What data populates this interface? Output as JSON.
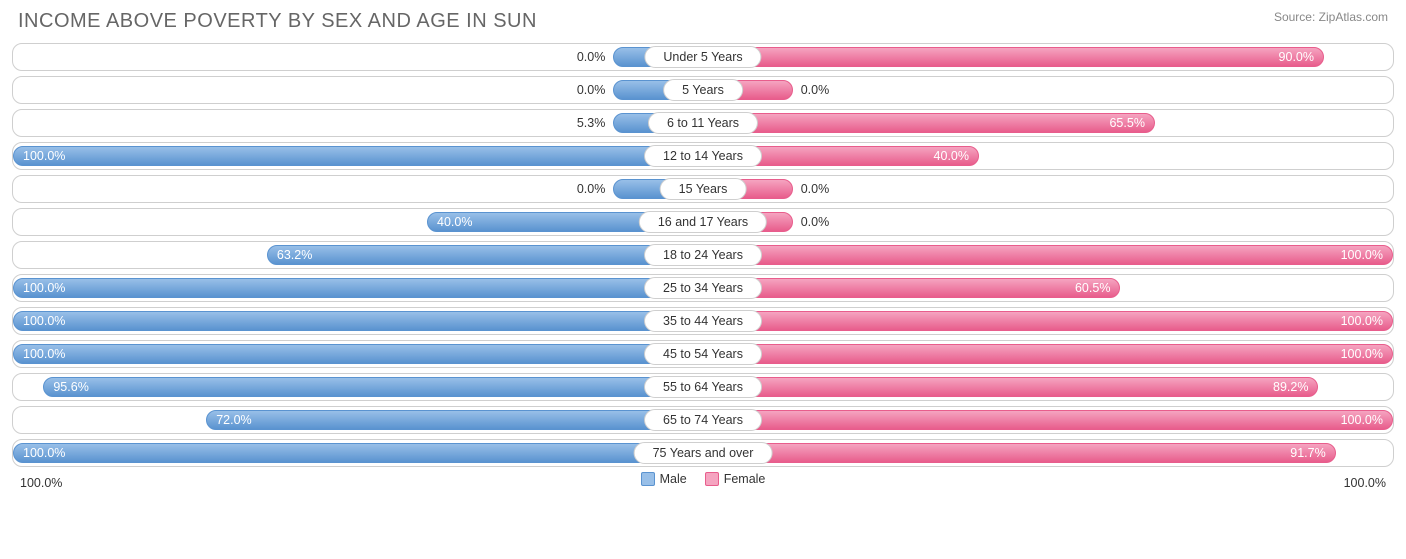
{
  "title": "INCOME ABOVE POVERTY BY SEX AND AGE IN SUN",
  "source": "Source: ZipAtlas.com",
  "colors": {
    "male_fill": "#98bfe8",
    "male_border": "#5a93d0",
    "female_fill": "#f5a4c0",
    "female_border": "#e85d8c",
    "row_border": "#cfcfcf",
    "text": "#333333",
    "title_text": "#666666"
  },
  "axis": {
    "left": "100.0%",
    "right": "100.0%"
  },
  "legend": {
    "male": "Male",
    "female": "Female"
  },
  "min_bar_pct": 13,
  "inside_threshold": 22,
  "rows": [
    {
      "age": "Under 5 Years",
      "male": 0.0,
      "female": 90.0
    },
    {
      "age": "5 Years",
      "male": 0.0,
      "female": 0.0
    },
    {
      "age": "6 to 11 Years",
      "male": 5.3,
      "female": 65.5
    },
    {
      "age": "12 to 14 Years",
      "male": 100.0,
      "female": 40.0
    },
    {
      "age": "15 Years",
      "male": 0.0,
      "female": 0.0
    },
    {
      "age": "16 and 17 Years",
      "male": 40.0,
      "female": 0.0
    },
    {
      "age": "18 to 24 Years",
      "male": 63.2,
      "female": 100.0
    },
    {
      "age": "25 to 34 Years",
      "male": 100.0,
      "female": 60.5
    },
    {
      "age": "35 to 44 Years",
      "male": 100.0,
      "female": 100.0
    },
    {
      "age": "45 to 54 Years",
      "male": 100.0,
      "female": 100.0
    },
    {
      "age": "55 to 64 Years",
      "male": 95.6,
      "female": 89.2
    },
    {
      "age": "65 to 74 Years",
      "male": 72.0,
      "female": 100.0
    },
    {
      "age": "75 Years and over",
      "male": 100.0,
      "female": 91.7
    }
  ]
}
